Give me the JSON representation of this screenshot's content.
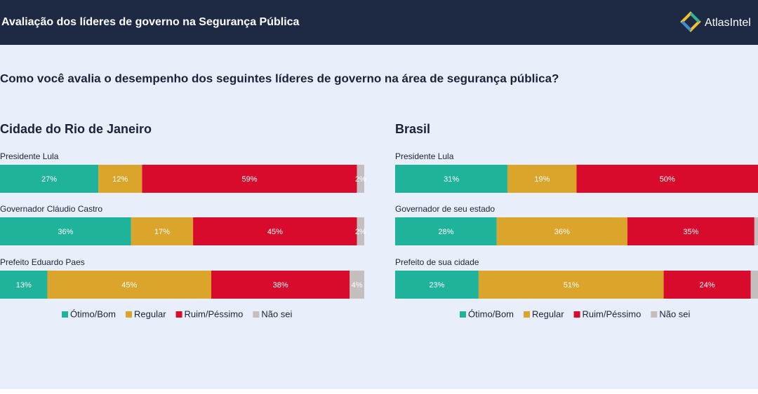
{
  "header": {
    "title": "Avaliação dos líderes de governo na Segurança Pública",
    "logo": "AtlasIntel"
  },
  "question": "Como você avalia o desempenho dos seguintes líderes de governo na área de segurança pública?",
  "chart_data": [
    {
      "type": "bar",
      "orientation": "horizontal",
      "stacked": true,
      "title": "Cidade do Rio de Janeiro",
      "categories": [
        "Presidente Lula",
        "Governador Cláudio Castro",
        "Prefeito Eduardo Paes"
      ],
      "xlim": [
        0,
        100
      ],
      "series": [
        {
          "name": "Ótimo/Bom",
          "color": "#1fb39b",
          "values": [
            27,
            36,
            13
          ],
          "value_labels": [
            "27%",
            "36%",
            "13%"
          ]
        },
        {
          "name": "Regular",
          "color": "#dba42b",
          "values": [
            12,
            17,
            45
          ],
          "value_labels": [
            "12%",
            "17%",
            "45%"
          ]
        },
        {
          "name": "Ruim/Péssimo",
          "color": "#d80b2d",
          "values": [
            59,
            45,
            38
          ],
          "value_labels": [
            "59%",
            "45%",
            "38%"
          ]
        },
        {
          "name": "Não sei",
          "color": "#c5bebf",
          "values": [
            2,
            2,
            4
          ],
          "value_labels": [
            "2%",
            "2%",
            "4%"
          ]
        }
      ]
    },
    {
      "type": "bar",
      "orientation": "horizontal",
      "stacked": true,
      "title": "Brasil",
      "categories": [
        "Presidente Lula",
        "Governador de seu estado",
        "Prefeito de sua cidade"
      ],
      "xlim": [
        0,
        100
      ],
      "series": [
        {
          "name": "Ótimo/Bom",
          "color": "#1fb39b",
          "values": [
            31,
            28,
            23
          ],
          "value_labels": [
            "31%",
            "28%",
            "23%"
          ]
        },
        {
          "name": "Regular",
          "color": "#dba42b",
          "values": [
            19,
            36,
            51
          ],
          "value_labels": [
            "19%",
            "36%",
            "51%"
          ]
        },
        {
          "name": "Ruim/Péssimo",
          "color": "#d80b2d",
          "values": [
            50,
            35,
            24
          ],
          "value_labels": [
            "50%",
            "35%",
            "24%"
          ]
        },
        {
          "name": "Não sei",
          "color": "#c5bebf",
          "values": [
            0,
            1,
            2
          ]
        }
      ]
    }
  ]
}
